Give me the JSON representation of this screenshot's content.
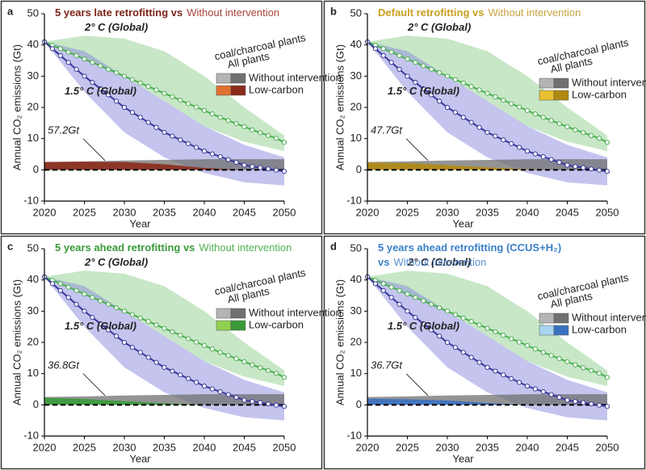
{
  "chart_data": [
    {
      "type": "line",
      "panel": "a",
      "title": [
        [
          "5 years late retrofitting vs",
          "Without intervention"
        ]
      ],
      "title_colors": [
        "#7a2418",
        "#a8443a"
      ],
      "xlabel": "Year",
      "ylabel": "Annual CO₂ emissions (Gt)",
      "xlim": [
        2020,
        2050
      ],
      "ylim": [
        -10,
        50
      ],
      "xticks": [
        2020,
        2025,
        2030,
        2035,
        2040,
        2045,
        2050
      ],
      "yticks": [
        -10,
        0,
        10,
        20,
        30,
        40,
        50
      ],
      "x": [
        2020,
        2021,
        2022,
        2023,
        2024,
        2025,
        2026,
        2027,
        2028,
        2029,
        2030,
        2031,
        2032,
        2033,
        2034,
        2035,
        2036,
        2037,
        2038,
        2039,
        2040,
        2041,
        2042,
        2043,
        2044,
        2045,
        2046,
        2047,
        2048,
        2049,
        2050
      ],
      "series": [
        {
          "name": "2° C (Global)",
          "color": "#4caf50",
          "values": [
            41,
            39.9,
            38.8,
            37.7,
            36.6,
            35.5,
            34.4,
            33.3,
            32.2,
            31.1,
            30,
            28.9,
            27.8,
            26.7,
            25.6,
            24.5,
            23.4,
            22.3,
            21.2,
            20.1,
            19,
            17.9,
            16.8,
            15.8,
            14.8,
            13.8,
            12.8,
            11.9,
            11,
            10.1,
            8.8
          ]
        },
        {
          "name": "1.5° C (Global)",
          "color": "#3a3a9a",
          "values": [
            41,
            38.8,
            36.6,
            34.4,
            32.2,
            30,
            28,
            26,
            24,
            22,
            20,
            18.4,
            16.8,
            15.2,
            13.6,
            12,
            10.8,
            9.6,
            8.4,
            7.2,
            6,
            5.1,
            4.2,
            3.3,
            2.4,
            1.5,
            1.1,
            0.7,
            0.3,
            -0.1,
            -0.5
          ]
        }
      ],
      "bands": [
        {
          "color": "#8fd08f",
          "x": [
            2020,
            2025,
            2030,
            2035,
            2040,
            2045,
            2050
          ],
          "upper": [
            41,
            43,
            42,
            38,
            30,
            20,
            11
          ],
          "lower": [
            41,
            36,
            30,
            22,
            14,
            9,
            6
          ]
        },
        {
          "color": "#8a8ae0",
          "x": [
            2020,
            2025,
            2030,
            2035,
            2040,
            2045,
            2050
          ],
          "upper": [
            41,
            38,
            30,
            22,
            14,
            8,
            4
          ],
          "lower": [
            41,
            25,
            12,
            4,
            -1,
            -4,
            -5
          ]
        }
      ],
      "legend_headers": [
        "coal/charcoal plants",
        "All plants"
      ],
      "areas": [
        {
          "name": "Without intervention",
          "colors": [
            "#b4b4b4",
            "#707070"
          ],
          "x": [
            2020,
            2025,
            2030,
            2035,
            2040,
            2045,
            2050
          ],
          "values": [
            2.5,
            2.7,
            3,
            3.2,
            3.4,
            3.4,
            3.4
          ]
        },
        {
          "name": "Low-carbon",
          "colors": [
            "#e07030",
            "#8b2a1a"
          ],
          "x": [
            2020,
            2025,
            2030,
            2035,
            2040,
            2045,
            2050
          ],
          "values": [
            2.5,
            2.6,
            2.5,
            1.8,
            0.6,
            0,
            0
          ]
        }
      ],
      "annotation": "57.2Gt",
      "annotation_color": "#8b2a1a"
    },
    {
      "type": "line",
      "panel": "b",
      "title": [
        [
          "Default retrofitting vs",
          "Without intervention"
        ]
      ],
      "title_colors": [
        "#c8a020",
        "#c8a440"
      ],
      "xlabel": "Year",
      "ylabel": "Annual CO₂ emissions (Gt)",
      "xlim": [
        2020,
        2050
      ],
      "ylim": [
        -10,
        50
      ],
      "xticks": [
        2020,
        2025,
        2030,
        2035,
        2040,
        2045,
        2050
      ],
      "yticks": [
        -10,
        0,
        10,
        20,
        30,
        40,
        50
      ],
      "x": [
        2020,
        2021,
        2022,
        2023,
        2024,
        2025,
        2026,
        2027,
        2028,
        2029,
        2030,
        2031,
        2032,
        2033,
        2034,
        2035,
        2036,
        2037,
        2038,
        2039,
        2040,
        2041,
        2042,
        2043,
        2044,
        2045,
        2046,
        2047,
        2048,
        2049,
        2050
      ],
      "series": [
        {
          "name": "2° C (Global)",
          "color": "#4caf50",
          "values": [
            41,
            39.9,
            38.8,
            37.7,
            36.6,
            35.5,
            34.4,
            33.3,
            32.2,
            31.1,
            30,
            28.9,
            27.8,
            26.7,
            25.6,
            24.5,
            23.4,
            22.3,
            21.2,
            20.1,
            19,
            17.9,
            16.8,
            15.8,
            14.8,
            13.8,
            12.8,
            11.9,
            11,
            10.1,
            8.8
          ]
        },
        {
          "name": "1.5° C (Global)",
          "color": "#3a3a9a",
          "values": [
            41,
            38.8,
            36.6,
            34.4,
            32.2,
            30,
            28,
            26,
            24,
            22,
            20,
            18.4,
            16.8,
            15.2,
            13.6,
            12,
            10.8,
            9.6,
            8.4,
            7.2,
            6,
            5.1,
            4.2,
            3.3,
            2.4,
            1.5,
            1.1,
            0.7,
            0.3,
            -0.1,
            -0.5
          ]
        }
      ],
      "bands": [
        {
          "color": "#8fd08f",
          "x": [
            2020,
            2025,
            2030,
            2035,
            2040,
            2045,
            2050
          ],
          "upper": [
            41,
            43,
            42,
            38,
            30,
            20,
            11
          ],
          "lower": [
            41,
            36,
            30,
            22,
            14,
            9,
            6
          ]
        },
        {
          "color": "#8a8ae0",
          "x": [
            2020,
            2025,
            2030,
            2035,
            2040,
            2045,
            2050
          ],
          "upper": [
            41,
            38,
            30,
            22,
            14,
            8,
            4
          ],
          "lower": [
            41,
            25,
            12,
            4,
            -1,
            -4,
            -5
          ]
        }
      ],
      "legend_headers": [
        "coal/charcoal plants",
        "All plants"
      ],
      "areas": [
        {
          "name": "Without intervention",
          "colors": [
            "#b4b4b4",
            "#707070"
          ],
          "x": [
            2020,
            2025,
            2030,
            2035,
            2040,
            2045,
            2050
          ],
          "values": [
            2.5,
            2.7,
            3,
            3.2,
            3.4,
            3.4,
            3.4
          ]
        },
        {
          "name": "Low-carbon",
          "colors": [
            "#e8c030",
            "#b08a10"
          ],
          "x": [
            2020,
            2025,
            2030,
            2035,
            2040,
            2045,
            2050
          ],
          "values": [
            2.3,
            2.2,
            1.5,
            0.8,
            0.2,
            0,
            0
          ]
        }
      ],
      "annotation": "47.7Gt",
      "annotation_color": "#c8a020"
    },
    {
      "type": "line",
      "panel": "c",
      "title": [
        [
          "5 years ahead retrofitting vs",
          "Without intervention"
        ]
      ],
      "title_colors": [
        "#3a9a3a",
        "#50b050"
      ],
      "xlabel": "Year",
      "ylabel": "Annual CO₂ emissions (Gt)",
      "xlim": [
        2020,
        2050
      ],
      "ylim": [
        -10,
        50
      ],
      "xticks": [
        2020,
        2025,
        2030,
        2035,
        2040,
        2045,
        2050
      ],
      "yticks": [
        -10,
        0,
        10,
        20,
        30,
        40,
        50
      ],
      "x": [
        2020,
        2021,
        2022,
        2023,
        2024,
        2025,
        2026,
        2027,
        2028,
        2029,
        2030,
        2031,
        2032,
        2033,
        2034,
        2035,
        2036,
        2037,
        2038,
        2039,
        2040,
        2041,
        2042,
        2043,
        2044,
        2045,
        2046,
        2047,
        2048,
        2049,
        2050
      ],
      "series": [
        {
          "name": "2° C (Global)",
          "color": "#4caf50",
          "values": [
            41,
            39.9,
            38.8,
            37.7,
            36.6,
            35.5,
            34.4,
            33.3,
            32.2,
            31.1,
            30,
            28.9,
            27.8,
            26.7,
            25.6,
            24.5,
            23.4,
            22.3,
            21.2,
            20.1,
            19,
            17.9,
            16.8,
            15.8,
            14.8,
            13.8,
            12.8,
            11.9,
            11,
            10.1,
            8.8
          ]
        },
        {
          "name": "1.5° C (Global)",
          "color": "#3a3a9a",
          "values": [
            41,
            38.8,
            36.6,
            34.4,
            32.2,
            30,
            28,
            26,
            24,
            22,
            20,
            18.4,
            16.8,
            15.2,
            13.6,
            12,
            10.8,
            9.6,
            8.4,
            7.2,
            6,
            5.1,
            4.2,
            3.3,
            2.4,
            1.5,
            1.1,
            0.7,
            0.3,
            -0.1,
            -0.5
          ]
        }
      ],
      "bands": [
        {
          "color": "#8fd08f",
          "x": [
            2020,
            2025,
            2030,
            2035,
            2040,
            2045,
            2050
          ],
          "upper": [
            41,
            43,
            42,
            38,
            30,
            20,
            11
          ],
          "lower": [
            41,
            36,
            30,
            22,
            14,
            9,
            6
          ]
        },
        {
          "color": "#8a8ae0",
          "x": [
            2020,
            2025,
            2030,
            2035,
            2040,
            2045,
            2050
          ],
          "upper": [
            41,
            38,
            30,
            22,
            14,
            8,
            4
          ],
          "lower": [
            41,
            25,
            12,
            4,
            -1,
            -4,
            -5
          ]
        }
      ],
      "legend_headers": [
        "coal/charcoal plants",
        "All plants"
      ],
      "areas": [
        {
          "name": "Without intervention",
          "colors": [
            "#b4b4b4",
            "#707070"
          ],
          "x": [
            2020,
            2025,
            2030,
            2035,
            2040,
            2045,
            2050
          ],
          "values": [
            2.5,
            2.7,
            3,
            3.2,
            3.4,
            3.4,
            3.4
          ]
        },
        {
          "name": "Low-carbon",
          "colors": [
            "#90d050",
            "#3a9a3a"
          ],
          "x": [
            2020,
            2025,
            2030,
            2035,
            2040,
            2045,
            2050
          ],
          "values": [
            2.3,
            1.9,
            1.2,
            0.5,
            0,
            0,
            0
          ]
        }
      ],
      "annotation": "36.8Gt",
      "annotation_color": "#60b040"
    },
    {
      "type": "line",
      "panel": "d",
      "title": [
        [
          "5 years ahead retrofitting (CCUS+H₂)"
        ],
        [
          "vs",
          "Without intervention"
        ]
      ],
      "title_colors": [
        "#3a80c8",
        "#5a90d0"
      ],
      "xlabel": "Year",
      "ylabel": "Annual CO₂ emissions (Gt)",
      "xlim": [
        2020,
        2050
      ],
      "ylim": [
        -10,
        50
      ],
      "xticks": [
        2020,
        2025,
        2030,
        2035,
        2040,
        2045,
        2050
      ],
      "yticks": [
        -10,
        0,
        10,
        20,
        30,
        40,
        50
      ],
      "x": [
        2020,
        2021,
        2022,
        2023,
        2024,
        2025,
        2026,
        2027,
        2028,
        2029,
        2030,
        2031,
        2032,
        2033,
        2034,
        2035,
        2036,
        2037,
        2038,
        2039,
        2040,
        2041,
        2042,
        2043,
        2044,
        2045,
        2046,
        2047,
        2048,
        2049,
        2050
      ],
      "series": [
        {
          "name": "2° C (Global)",
          "color": "#4caf50",
          "values": [
            41,
            39.9,
            38.8,
            37.7,
            36.6,
            35.5,
            34.4,
            33.3,
            32.2,
            31.1,
            30,
            28.9,
            27.8,
            26.7,
            25.6,
            24.5,
            23.4,
            22.3,
            21.2,
            20.1,
            19,
            17.9,
            16.8,
            15.8,
            14.8,
            13.8,
            12.8,
            11.9,
            11,
            10.1,
            8.8
          ]
        },
        {
          "name": "1.5° C (Global)",
          "color": "#3a3a9a",
          "values": [
            41,
            38.8,
            36.6,
            34.4,
            32.2,
            30,
            28,
            26,
            24,
            22,
            20,
            18.4,
            16.8,
            15.2,
            13.6,
            12,
            10.8,
            9.6,
            8.4,
            7.2,
            6,
            5.1,
            4.2,
            3.3,
            2.4,
            1.5,
            1.1,
            0.7,
            0.3,
            -0.1,
            -0.5
          ]
        }
      ],
      "bands": [
        {
          "color": "#8fd08f",
          "x": [
            2020,
            2025,
            2030,
            2035,
            2040,
            2045,
            2050
          ],
          "upper": [
            41,
            43,
            42,
            38,
            30,
            20,
            11
          ],
          "lower": [
            41,
            36,
            30,
            22,
            14,
            9,
            6
          ]
        },
        {
          "color": "#8a8ae0",
          "x": [
            2020,
            2025,
            2030,
            2035,
            2040,
            2045,
            2050
          ],
          "upper": [
            41,
            38,
            30,
            22,
            14,
            8,
            4
          ],
          "lower": [
            41,
            25,
            12,
            4,
            -1,
            -4,
            -5
          ]
        }
      ],
      "legend_headers": [
        "coal/charcoal plants",
        "All plants"
      ],
      "areas": [
        {
          "name": "Without intervention",
          "colors": [
            "#b4b4b4",
            "#707070"
          ],
          "x": [
            2020,
            2025,
            2030,
            2035,
            2040,
            2045,
            2050
          ],
          "values": [
            2.5,
            2.7,
            3,
            3.2,
            3.4,
            3.4,
            3.4
          ]
        },
        {
          "name": "Low-carbon",
          "colors": [
            "#a8d4f0",
            "#3a70c0"
          ],
          "x": [
            2020,
            2025,
            2030,
            2035,
            2040,
            2045,
            2050
          ],
          "values": [
            2,
            1.8,
            1.4,
            0.6,
            0,
            0,
            0
          ]
        }
      ],
      "annotation": "36.7Gt",
      "annotation_color": "#4a80c0"
    }
  ]
}
